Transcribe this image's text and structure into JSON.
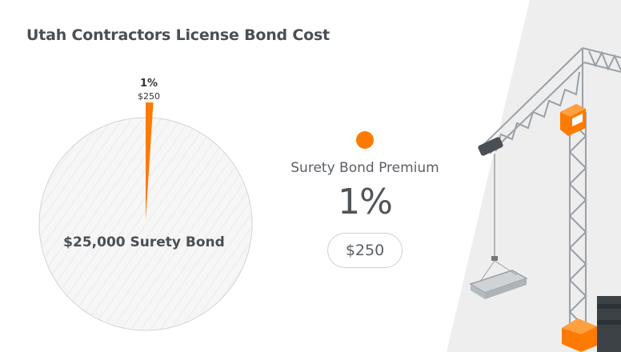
{
  "chart_data": {
    "type": "pie",
    "title": "Utah Contractors License Bond Cost",
    "slices": [
      {
        "name": "Surety Bond Premium",
        "percent": 1,
        "label_pct": "1%",
        "label_amount": "$250",
        "color": "#ff7a00"
      },
      {
        "name": "$25,000 Surety Bond",
        "percent": 99,
        "color": "#f4f4f4"
      }
    ],
    "center_label": "$25,000 Surety Bond"
  },
  "legend": {
    "label": "Surety Bond Premium",
    "percent": "1%",
    "amount": "$250",
    "color": "#ff7a00"
  },
  "colors": {
    "accent": "#ff7a00",
    "text": "#4a4f54",
    "panel": "#eeeeee"
  },
  "illustration": {
    "icon": "tower-crane-icon"
  }
}
